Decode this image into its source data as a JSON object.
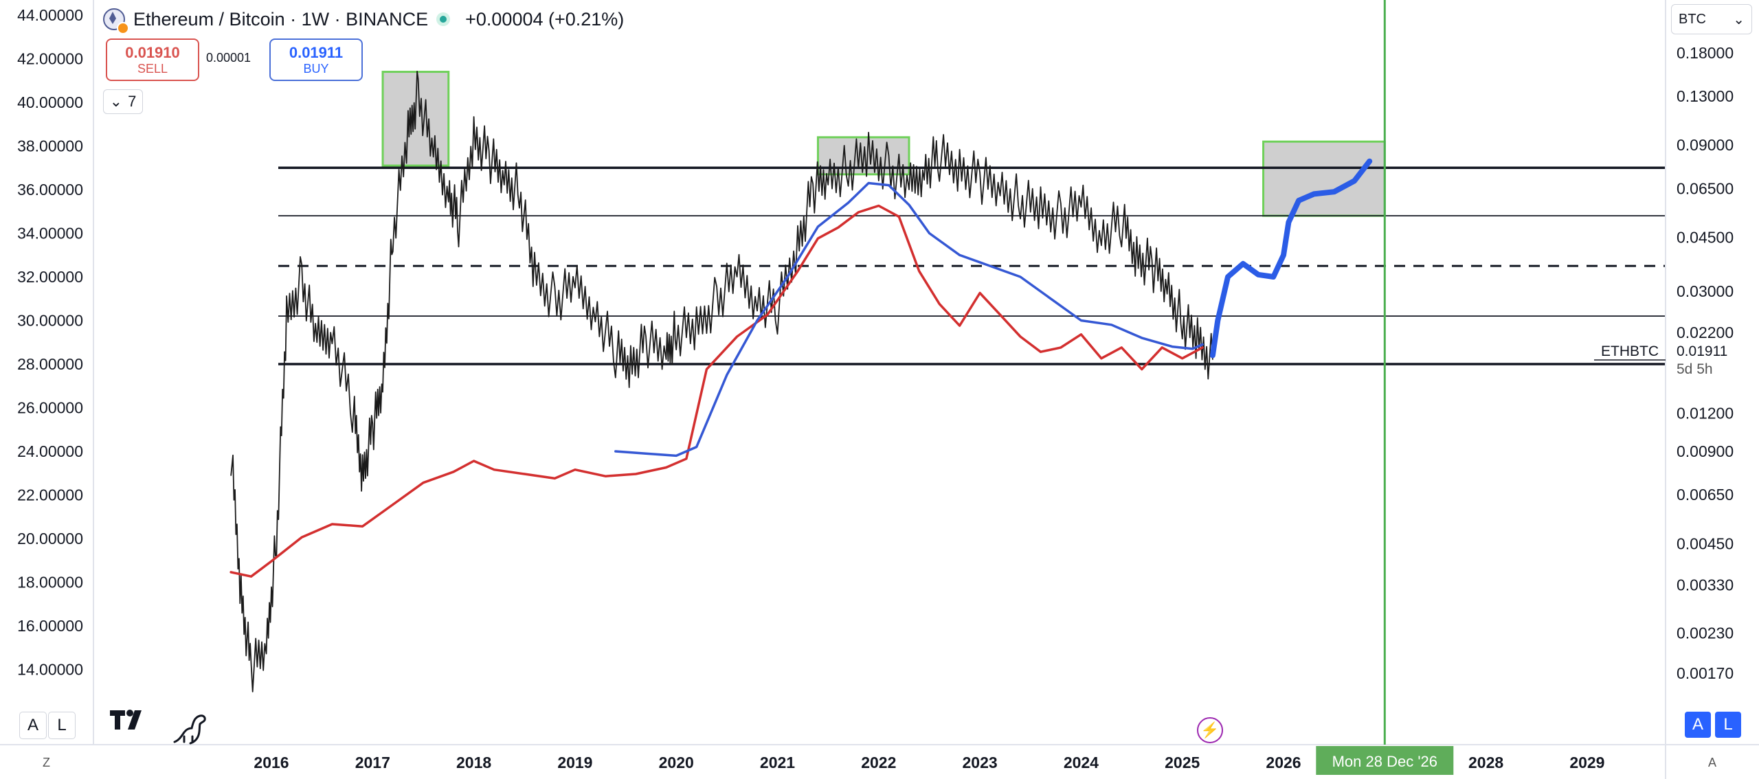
{
  "header": {
    "symbol": "Ethereum / Bitcoin · 1W · BINANCE",
    "change": "+0.00004 (+0.21%)"
  },
  "trade": {
    "sell_price": "0.01910",
    "sell_label": "SELL",
    "spread": "0.00001",
    "buy_price": "0.01911",
    "buy_label": "BUY"
  },
  "indicators_count": "7",
  "currency": "BTC",
  "last_price_label": {
    "symbol": "ETHBTC",
    "price": "0.01911",
    "countdown": "5d 5h"
  },
  "crosshair_date": "Mon 28 Dec '26",
  "buttons": {
    "a": "A",
    "l": "L",
    "z": "Z",
    "a_corner": "A"
  },
  "chart_data": {
    "type": "line",
    "left_axis": {
      "ticks": [
        "44.00000",
        "42.00000",
        "40.00000",
        "38.00000",
        "36.00000",
        "34.00000",
        "32.00000",
        "30.00000",
        "28.00000",
        "26.00000",
        "24.00000",
        "22.00000",
        "20.00000",
        "18.00000",
        "16.00000",
        "14.00000"
      ],
      "range": [
        12,
        44
      ]
    },
    "right_axis": {
      "scale": "log",
      "ticks": [
        "0.18000",
        "0.13000",
        "0.09000",
        "0.06500",
        "0.04500",
        "0.03000",
        "0.02200",
        "0.01200",
        "0.00900",
        "0.00650",
        "0.00450",
        "0.00330",
        "0.00230",
        "0.00170"
      ]
    },
    "x_axis": {
      "ticks": [
        "2016",
        "2017",
        "2018",
        "2019",
        "2020",
        "2021",
        "2022",
        "2023",
        "2024",
        "2025",
        "2026",
        "2028",
        "2029"
      ],
      "range": [
        2015.0,
        2030.0
      ]
    },
    "horizontal_levels": [
      {
        "value": 37.0,
        "style": "solid-bold"
      },
      {
        "value": 34.8,
        "style": "solid"
      },
      {
        "value": 32.5,
        "style": "dashed"
      },
      {
        "value": 30.2,
        "style": "solid"
      },
      {
        "value": 28.0,
        "style": "solid-bold"
      }
    ],
    "highlight_zones": [
      {
        "x": [
          2017.1,
          2017.75
        ],
        "y": [
          37.1,
          41.4
        ]
      },
      {
        "x": [
          2021.4,
          2022.3
        ],
        "y": [
          36.7,
          38.4
        ]
      },
      {
        "x": [
          2025.8,
          2027.0
        ],
        "y": [
          34.8,
          38.2
        ]
      }
    ],
    "vertical_marker": {
      "x": 2027.0,
      "label": "Mon 28 Dec '26"
    },
    "series": [
      {
        "color": "#1a1a1a",
        "style": "price",
        "x": [
          2015.6,
          2015.7,
          2015.8,
          2015.95,
          2016.05,
          2016.15,
          2016.3,
          2016.45,
          2016.6,
          2016.8,
          2016.9,
          2017.0,
          2017.1,
          2017.2,
          2017.35,
          2017.45,
          2017.6,
          2017.75,
          2017.85,
          2018.0,
          2018.15,
          2018.3,
          2018.45,
          2018.6,
          2018.8,
          2019.0,
          2019.2,
          2019.4,
          2019.55,
          2019.7,
          2019.9,
          2020.0,
          2020.2,
          2020.4,
          2020.6,
          2020.8,
          2021.0,
          2021.2,
          2021.35,
          2021.5,
          2021.7,
          2021.9,
          2022.1,
          2022.3,
          2022.45,
          2022.6,
          2022.8,
          2023.0,
          2023.2,
          2023.4,
          2023.6,
          2023.8,
          2024.0,
          2024.2,
          2024.4,
          2024.55,
          2024.7,
          2024.85,
          2025.0,
          2025.15,
          2025.3
        ],
        "y": [
          24.0,
          17.5,
          14.0,
          15.0,
          20.0,
          30.0,
          32.0,
          29.0,
          29.5,
          26.0,
          23.0,
          25.0,
          27.0,
          34.0,
          38.5,
          40.5,
          37.5,
          36.0,
          34.5,
          38.5,
          37.5,
          36.5,
          36.0,
          32.0,
          31.0,
          31.5,
          30.5,
          28.5,
          28.0,
          29.0,
          28.5,
          29.5,
          29.5,
          31.0,
          32.0,
          31.0,
          30.5,
          33.5,
          36.0,
          36.5,
          37.0,
          37.5,
          37.0,
          36.0,
          37.0,
          37.5,
          37.0,
          36.5,
          36.0,
          35.5,
          35.0,
          34.8,
          35.2,
          34.0,
          34.5,
          33.0,
          32.5,
          31.5,
          30.0,
          29.0,
          28.2
        ]
      },
      {
        "color": "#d32f2f",
        "style": "moving-average",
        "x": [
          2015.6,
          2015.8,
          2016.0,
          2016.3,
          2016.6,
          2016.9,
          2017.2,
          2017.5,
          2017.8,
          2018.0,
          2018.2,
          2018.5,
          2018.8,
          2019.0,
          2019.3,
          2019.6,
          2019.9,
          2020.1,
          2020.3,
          2020.6,
          2020.9,
          2021.2,
          2021.4,
          2021.6,
          2021.8,
          2022.0,
          2022.2,
          2022.4,
          2022.6,
          2022.8,
          2023.0,
          2023.2,
          2023.4,
          2023.6,
          2023.8,
          2024.0,
          2024.2,
          2024.4,
          2024.6,
          2024.8,
          2025.0,
          2025.2
        ],
        "y": [
          18.7,
          18.5,
          19.2,
          20.3,
          20.9,
          20.8,
          21.8,
          22.8,
          23.3,
          23.8,
          23.4,
          23.2,
          23.0,
          23.4,
          23.1,
          23.2,
          23.5,
          23.9,
          28.0,
          29.5,
          30.5,
          32.5,
          34.0,
          34.5,
          35.2,
          35.5,
          35.0,
          32.5,
          31.0,
          30.0,
          31.5,
          30.5,
          29.5,
          28.8,
          29.0,
          29.6,
          28.5,
          29.0,
          28.0,
          29.0,
          28.5,
          29.0
        ]
      },
      {
        "color": "#3558d4",
        "style": "moving-average",
        "x": [
          2019.4,
          2019.7,
          2020.0,
          2020.2,
          2020.5,
          2020.8,
          2021.1,
          2021.4,
          2021.7,
          2021.9,
          2022.1,
          2022.3,
          2022.5,
          2022.8,
          2023.1,
          2023.4,
          2023.7,
          2024.0,
          2024.3,
          2024.6,
          2024.9,
          2025.1,
          2025.2
        ],
        "y": [
          24.0,
          23.9,
          23.8,
          24.2,
          27.5,
          30.0,
          32.0,
          34.3,
          35.4,
          36.3,
          36.2,
          35.3,
          34.0,
          33.0,
          32.5,
          32.0,
          31.0,
          30.0,
          29.8,
          29.2,
          28.8,
          28.7,
          28.9
        ]
      },
      {
        "color": "#2b5ce6",
        "style": "projection",
        "x": [
          2025.3,
          2025.35,
          2025.45,
          2025.6,
          2025.75,
          2025.9,
          2026.0,
          2026.05,
          2026.15,
          2026.3,
          2026.5,
          2026.7,
          2026.85
        ],
        "y": [
          28.4,
          30.0,
          32.0,
          32.6,
          32.1,
          32.0,
          33.0,
          34.5,
          35.5,
          35.8,
          35.9,
          36.4,
          37.3
        ]
      }
    ]
  }
}
